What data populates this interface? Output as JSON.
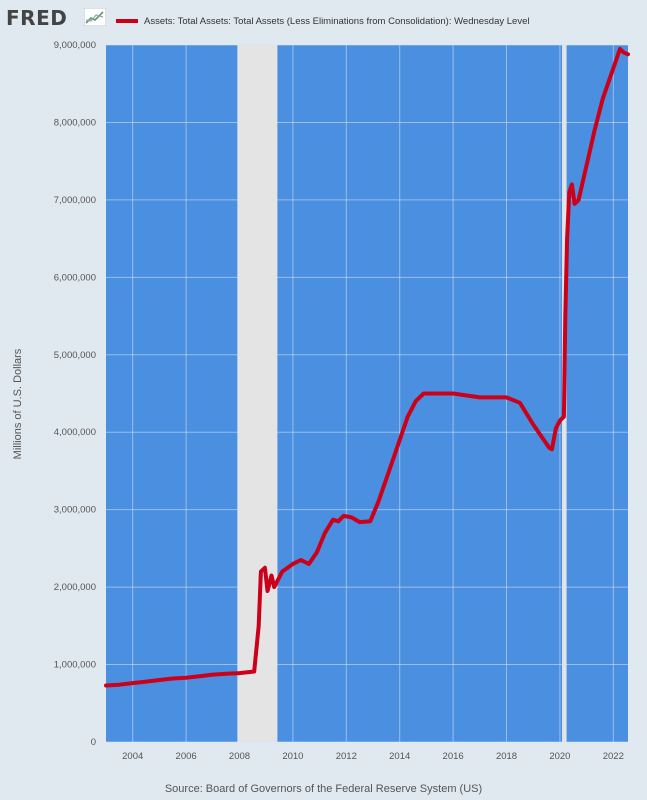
{
  "header": {
    "logo_text": "FRED",
    "logo_icon": "fred-chart-icon"
  },
  "chart_data": {
    "type": "line",
    "title": "",
    "ylabel": "Millions of U.S. Dollars",
    "xlabel": "",
    "source": "Source: Board of Governors of the Federal Reserve System (US)",
    "xlim": [
      2003.0,
      2022.55
    ],
    "ylim": [
      0,
      9000000
    ],
    "xticks": [
      2004,
      2006,
      2008,
      2010,
      2012,
      2014,
      2016,
      2018,
      2020,
      2022
    ],
    "xtick_labels": [
      "2004",
      "2006",
      "2008",
      "2010",
      "2012",
      "2014",
      "2016",
      "2018",
      "2020",
      "2022"
    ],
    "yticks": [
      0,
      1000000,
      2000000,
      3000000,
      4000000,
      5000000,
      6000000,
      7000000,
      8000000,
      9000000
    ],
    "ytick_labels": [
      "0",
      "1,000,000",
      "2,000,000",
      "3,000,000",
      "4,000,000",
      "5,000,000",
      "6,000,000",
      "7,000,000",
      "8,000,000",
      "9,000,000"
    ],
    "grid": true,
    "legend_position": "top",
    "colors": {
      "plot_bg": "#4a8fe0",
      "line": "#cc0019",
      "recession": "#e4e4e4",
      "grid": "#d8e6f5"
    },
    "recessions": [
      [
        2007.92,
        2009.42
      ],
      [
        2020.08,
        2020.25
      ]
    ],
    "series": [
      {
        "name": "Assets: Total Assets: Total Assets (Less Eliminations from Consolidation): Wednesday Level",
        "x": [
          2003.0,
          2003.5,
          2004.0,
          2004.5,
          2005.0,
          2005.5,
          2006.0,
          2006.5,
          2007.0,
          2007.5,
          2008.0,
          2008.3,
          2008.55,
          2008.72,
          2008.8,
          2008.95,
          2009.05,
          2009.2,
          2009.3,
          2009.45,
          2009.6,
          2009.8,
          2010.0,
          2010.3,
          2010.6,
          2010.9,
          2011.2,
          2011.5,
          2011.7,
          2011.9,
          2012.2,
          2012.5,
          2012.9,
          2013.2,
          2013.5,
          2013.8,
          2014.0,
          2014.3,
          2014.6,
          2014.9,
          2015.2,
          2016.0,
          2017.0,
          2017.5,
          2018.0,
          2018.5,
          2019.0,
          2019.3,
          2019.6,
          2019.7,
          2019.85,
          2020.0,
          2020.15,
          2020.2,
          2020.27,
          2020.35,
          2020.45,
          2020.55,
          2020.7,
          2020.9,
          2021.1,
          2021.3,
          2021.6,
          2021.9,
          2022.1,
          2022.25,
          2022.4,
          2022.55
        ],
        "values": [
          730000,
          740000,
          760000,
          780000,
          800000,
          820000,
          830000,
          850000,
          870000,
          880000,
          890000,
          900000,
          910000,
          1500000,
          2200000,
          2250000,
          1950000,
          2150000,
          2000000,
          2100000,
          2200000,
          2250000,
          2300000,
          2350000,
          2300000,
          2450000,
          2700000,
          2870000,
          2850000,
          2920000,
          2900000,
          2840000,
          2850000,
          3100000,
          3400000,
          3700000,
          3900000,
          4200000,
          4400000,
          4500000,
          4500000,
          4500000,
          4450000,
          4450000,
          4450000,
          4380000,
          4100000,
          3950000,
          3800000,
          3780000,
          4050000,
          4150000,
          4200000,
          5500000,
          6500000,
          7100000,
          7200000,
          6950000,
          7000000,
          7300000,
          7600000,
          7900000,
          8300000,
          8600000,
          8800000,
          8950000,
          8900000,
          8880000
        ]
      }
    ]
  }
}
